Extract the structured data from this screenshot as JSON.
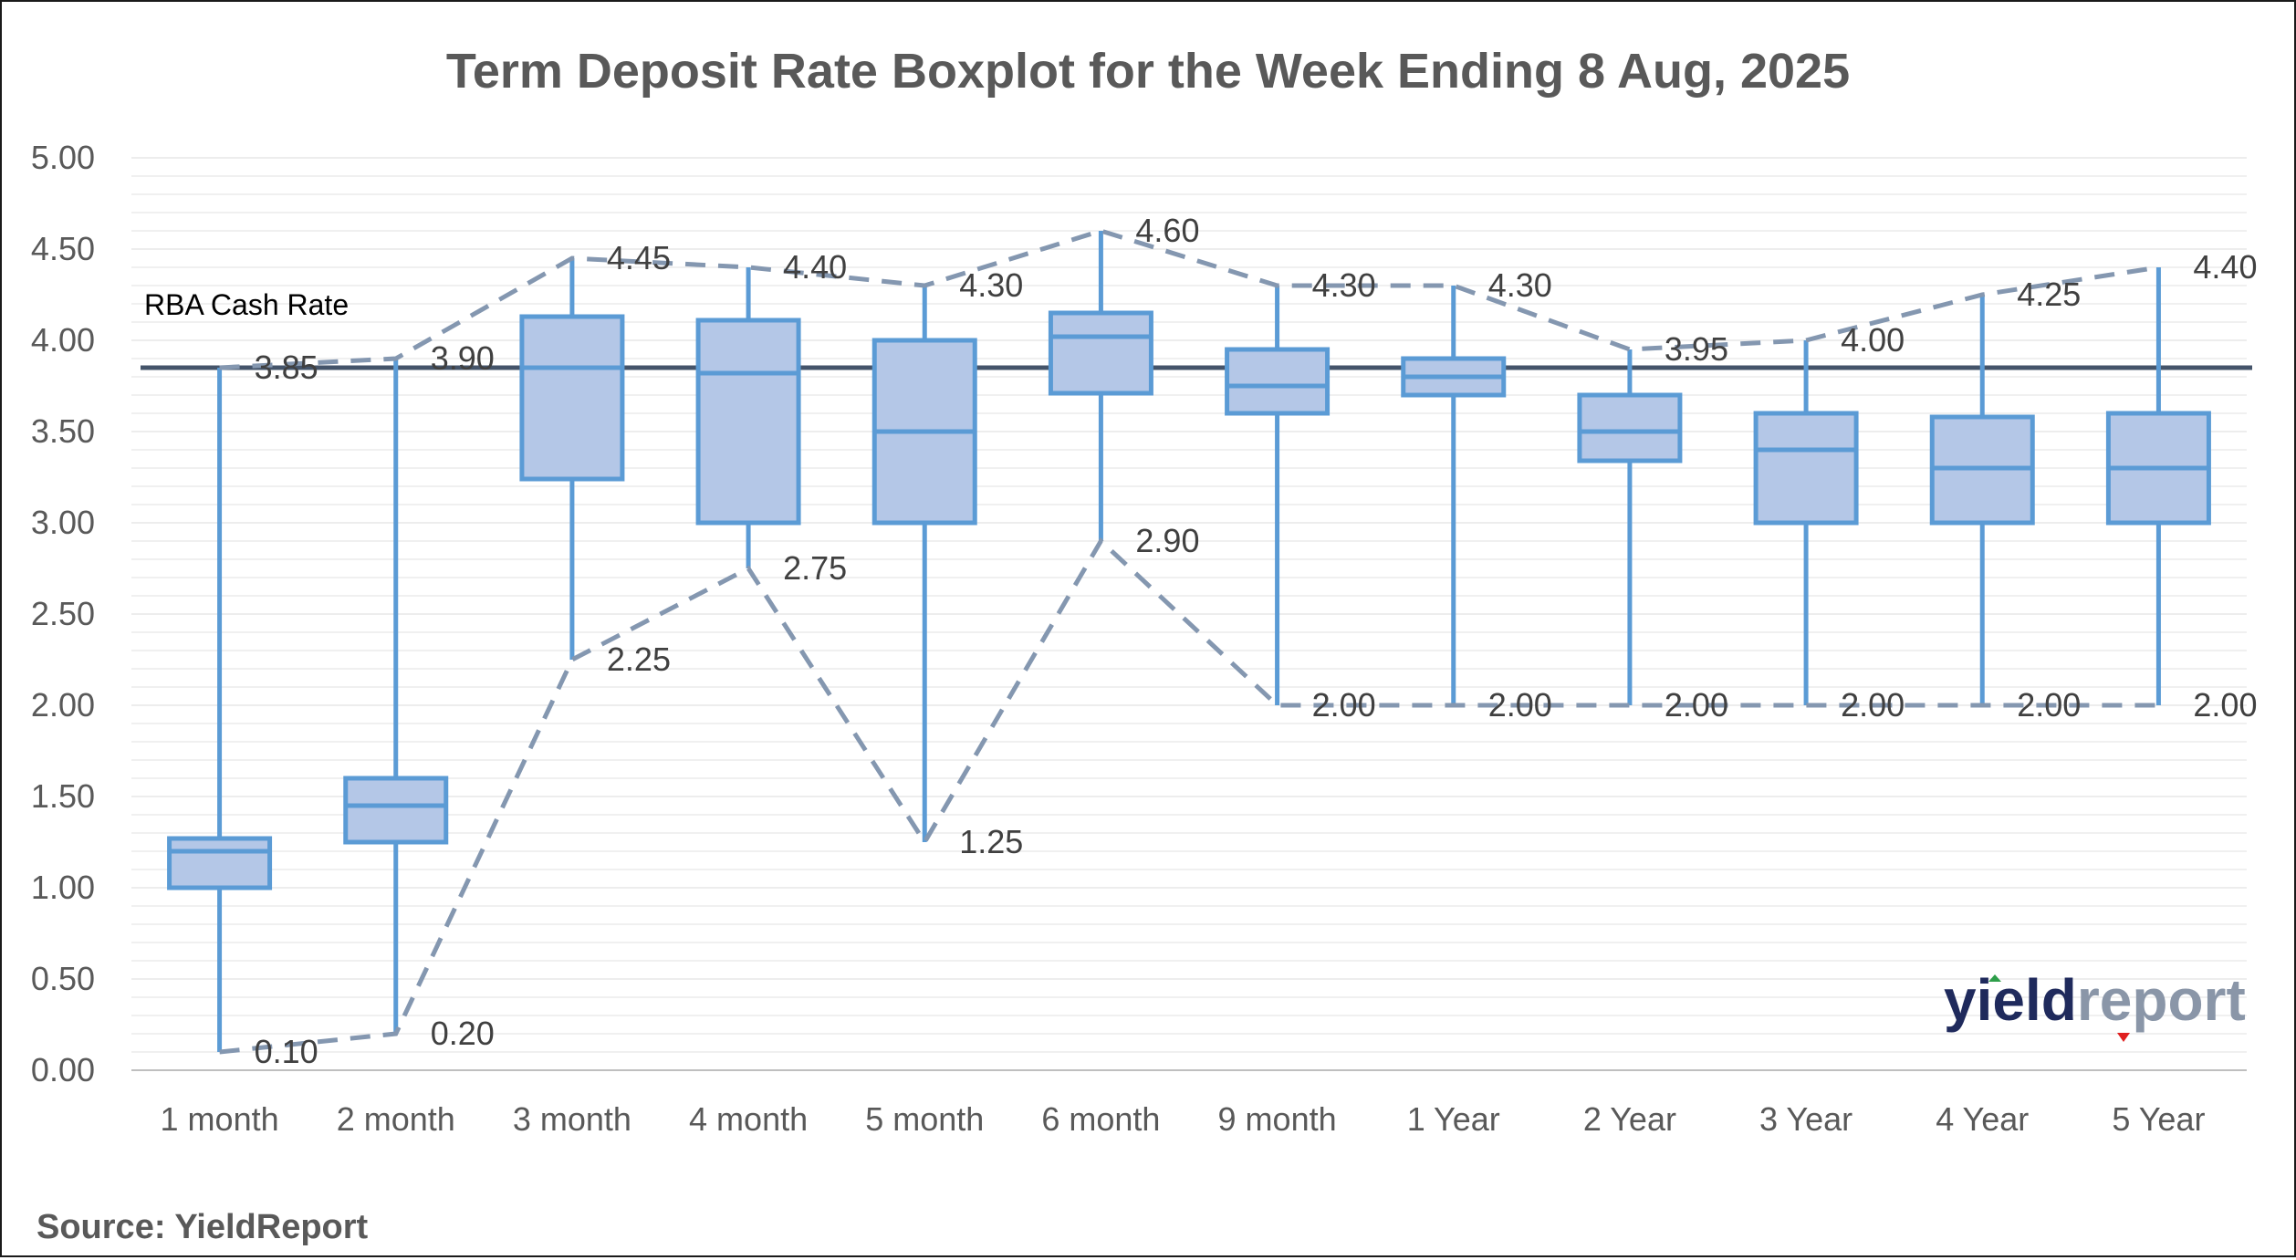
{
  "colors": {
    "box_fill": "#b4c7e7",
    "box_stroke": "#5b9bd5",
    "range_line": "#8497b0",
    "reference_line": "#44546a",
    "grid": "#e7e7e7",
    "text": "#595959",
    "logo_dark": "#1f2a5c",
    "logo_light": "#8a96a8"
  },
  "source": "Source: YieldReport",
  "logo": {
    "part1": "yield",
    "part2": "report"
  },
  "chart_data": {
    "type": "boxplot",
    "title": "Term Deposit Rate Boxplot for the Week Ending 8 Aug, 2025",
    "xlabel": "",
    "ylabel": "",
    "ylim": [
      0,
      5
    ],
    "y_ticks": [
      "0.00",
      "0.50",
      "1.00",
      "1.50",
      "2.00",
      "2.50",
      "3.00",
      "3.50",
      "4.00",
      "4.50",
      "5.00"
    ],
    "grid": true,
    "categories": [
      "1 month",
      "2 month",
      "3 month",
      "4 month",
      "5 month",
      "6 month",
      "9 month",
      "1  Year",
      "2  Year",
      "3  Year",
      "4  Year",
      "5  Year"
    ],
    "min": [
      0.1,
      0.2,
      2.25,
      2.75,
      1.25,
      2.9,
      2.0,
      2.0,
      2.0,
      2.0,
      2.0,
      2.0
    ],
    "q1": [
      1.0,
      1.25,
      3.24,
      3.0,
      3.0,
      3.71,
      3.6,
      3.7,
      3.34,
      3.0,
      3.0,
      3.0
    ],
    "median": [
      1.2,
      1.45,
      3.85,
      3.82,
      3.5,
      4.02,
      3.75,
      3.8,
      3.5,
      3.4,
      3.3,
      3.3
    ],
    "q3": [
      1.27,
      1.6,
      4.13,
      4.11,
      4.0,
      4.15,
      3.95,
      3.9,
      3.7,
      3.6,
      3.58,
      3.6
    ],
    "max": [
      3.85,
      3.9,
      4.45,
      4.4,
      4.3,
      4.6,
      4.3,
      4.3,
      3.95,
      4.0,
      4.25,
      4.4
    ],
    "max_labels": [
      "3.85",
      "3.90",
      "4.45",
      "4.40",
      "4.30",
      "4.60",
      "4.30",
      "4.30",
      "3.95",
      "4.00",
      "4.25",
      "4.40"
    ],
    "min_labels": [
      "0.10",
      "0.20",
      "2.25",
      "2.75",
      "1.25",
      "2.90",
      "2.00",
      "2.00",
      "2.00",
      "2.00",
      "2.00",
      "2.00"
    ],
    "reference_line": {
      "label": "RBA Cash Rate",
      "value": 3.85
    }
  }
}
